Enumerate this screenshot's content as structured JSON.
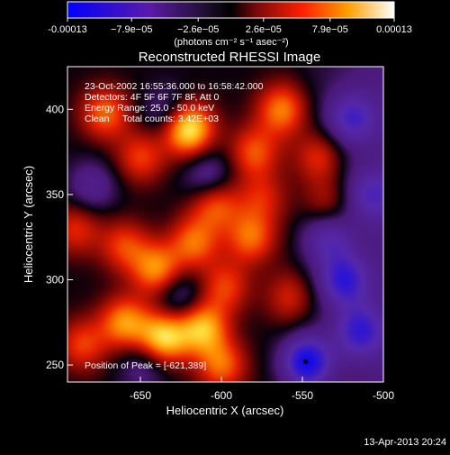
{
  "chart_data": {
    "type": "heatmap",
    "title": "Reconstructed RHESSI Image",
    "xlabel": "Heliocentric X (arcsec)",
    "ylabel": "Heliocentric Y (arcsec)",
    "xlim": [
      -695,
      -500
    ],
    "ylim": [
      240,
      425
    ],
    "x_ticks": [
      -650,
      -600,
      -550,
      -500
    ],
    "x_tick_labels": [
      "-650",
      "-600",
      "-550",
      "-500"
    ],
    "y_ticks": [
      250,
      300,
      350,
      400
    ],
    "y_tick_labels": [
      "250",
      "300",
      "350",
      "400"
    ],
    "colorbar": {
      "min": -0.00013,
      "max": 0.00013,
      "tick_values": [
        -0.00013,
        -7.9e-05,
        -2.6e-05,
        2.6e-05,
        7.9e-05,
        0.00013
      ],
      "tick_labels": [
        "-0.00013",
        "−7.9e−05",
        "−2.6e−05",
        "2.6e−05",
        "7.9e−05",
        "0.00013"
      ],
      "units": "(photons cm⁻² s⁻¹ asec⁻²)"
    },
    "annotations": [
      "23-Oct-2002 16:55:36.000 to 16:58:42.000",
      "Detectors: 4F 5F 6F 7F 8F, Att 0",
      "Energy Range: 25.0 - 50.0 keV",
      "Clean     Total counts: 3.42E+03"
    ],
    "peak_label": "Position of Peak = [-621,389]",
    "peak": [
      -621,
      389
    ],
    "blobs": [
      {
        "x": -621,
        "y": 389,
        "v": 1.0
      },
      {
        "x": -672,
        "y": 398,
        "v": 0.55
      },
      {
        "x": -650,
        "y": 372,
        "v": 0.45
      },
      {
        "x": -580,
        "y": 375,
        "v": 0.5
      },
      {
        "x": -563,
        "y": 400,
        "v": 0.6
      },
      {
        "x": -540,
        "y": 372,
        "v": 0.45
      },
      {
        "x": -604,
        "y": 345,
        "v": 0.55
      },
      {
        "x": -582,
        "y": 325,
        "v": 0.55
      },
      {
        "x": -575,
        "y": 348,
        "v": 0.35
      },
      {
        "x": -535,
        "y": 345,
        "v": 0.35
      },
      {
        "x": -558,
        "y": 290,
        "v": 0.35
      },
      {
        "x": -690,
        "y": 330,
        "v": 0.4
      },
      {
        "x": -660,
        "y": 320,
        "v": 0.45
      },
      {
        "x": -640,
        "y": 306,
        "v": 0.65
      },
      {
        "x": -617,
        "y": 322,
        "v": 0.55
      },
      {
        "x": -660,
        "y": 275,
        "v": 0.65
      },
      {
        "x": -636,
        "y": 266,
        "v": 0.85
      },
      {
        "x": -612,
        "y": 272,
        "v": 0.75
      },
      {
        "x": -598,
        "y": 296,
        "v": 0.45
      },
      {
        "x": -600,
        "y": 250,
        "v": 0.55
      },
      {
        "x": -686,
        "y": 262,
        "v": 0.45
      },
      {
        "x": -633,
        "y": 398,
        "v": -0.35
      },
      {
        "x": -608,
        "y": 360,
        "v": -0.4
      },
      {
        "x": -680,
        "y": 355,
        "v": -0.35
      },
      {
        "x": -626,
        "y": 290,
        "v": -0.35
      },
      {
        "x": -648,
        "y": 250,
        "v": -0.3
      },
      {
        "x": -548,
        "y": 252,
        "v": -0.85
      },
      {
        "x": -525,
        "y": 300,
        "v": -0.6
      },
      {
        "x": -515,
        "y": 270,
        "v": -0.55
      },
      {
        "x": -520,
        "y": 395,
        "v": -0.5
      },
      {
        "x": -535,
        "y": 325,
        "v": -0.45
      },
      {
        "x": -508,
        "y": 350,
        "v": -0.4
      }
    ]
  },
  "footer": {
    "timestamp": "13-Apr-2013 20:24"
  }
}
